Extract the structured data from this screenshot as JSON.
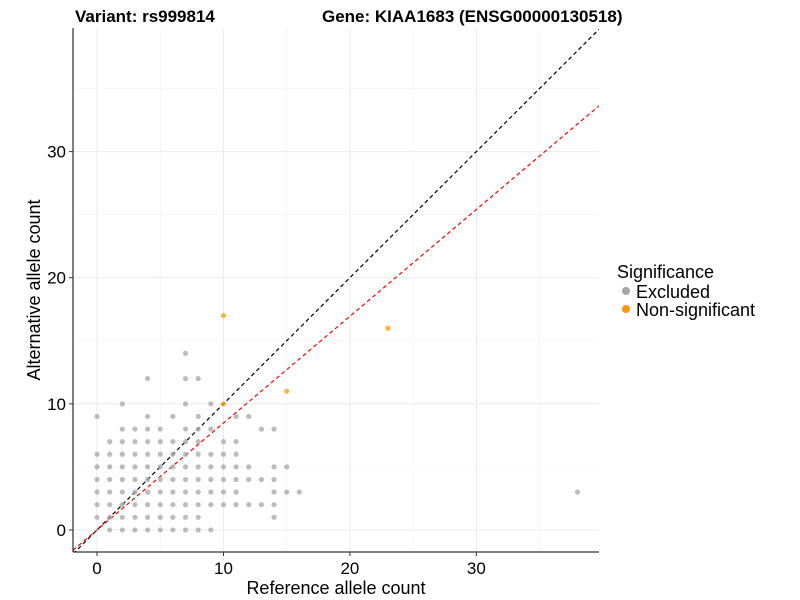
{
  "chart_data": {
    "type": "scatter",
    "title_left": "Variant: rs999814",
    "title_right": "Gene: KIAA1683 (ENSG00000130518)",
    "xlabel": "Reference allele count",
    "ylabel": "Alternative allele count",
    "xlim": [
      -1.9,
      39.7
    ],
    "ylim": [
      -1.75,
      39.8
    ],
    "xticks": [
      0,
      10,
      20,
      30
    ],
    "yticks": [
      0,
      10,
      20,
      30
    ],
    "xtick_labels": [
      "0",
      "10",
      "20",
      "30"
    ],
    "ytick_labels": [
      "0",
      "10",
      "20",
      "30"
    ],
    "grid": true,
    "legend": {
      "title": "Significance",
      "placement": "right",
      "entries": [
        "Excluded",
        "Non-significant"
      ]
    },
    "lines": [
      {
        "name": "identity",
        "slope": 1,
        "intercept": 0,
        "color": "#000000",
        "style": "dashed"
      },
      {
        "name": "fit",
        "slope": 0.847,
        "intercept": 0,
        "color": "#FF0000",
        "style": "dashed"
      }
    ],
    "series": [
      {
        "name": "Excluded",
        "color": "#A6A6A6",
        "rows": [
          {
            "y": 0,
            "x": [
              1,
              2,
              3,
              4,
              5,
              6,
              7,
              8,
              9
            ]
          },
          {
            "y": 1,
            "x": [
              0,
              1,
              2,
              3,
              4,
              5,
              6,
              7,
              8,
              14
            ]
          },
          {
            "y": 2,
            "x": [
              0,
              1,
              2,
              3,
              4,
              5,
              6,
              7,
              8,
              9,
              10,
              11,
              12,
              13,
              14
            ]
          },
          {
            "y": 3,
            "x": [
              0,
              1,
              2,
              3,
              4,
              5,
              6,
              7,
              8,
              9,
              10,
              11,
              14,
              15,
              16,
              38
            ]
          },
          {
            "y": 4,
            "x": [
              0,
              1,
              2,
              3,
              4,
              5,
              6,
              7,
              8,
              9,
              10,
              11,
              12,
              13,
              14
            ]
          },
          {
            "y": 5,
            "x": [
              0,
              1,
              2,
              3,
              4,
              5,
              6,
              7,
              8,
              9,
              10,
              11,
              12,
              14,
              15
            ]
          },
          {
            "y": 6,
            "x": [
              0,
              1,
              2,
              3,
              4,
              5,
              6,
              7,
              8,
              9,
              10,
              11
            ]
          },
          {
            "y": 7,
            "x": [
              1,
              2,
              3,
              4,
              5,
              6,
              7,
              8,
              10,
              11
            ]
          },
          {
            "y": 8,
            "x": [
              2,
              3,
              4,
              5,
              7,
              8,
              9,
              13,
              14
            ]
          },
          {
            "y": 9,
            "x": [
              0,
              4,
              6,
              8,
              11,
              12
            ]
          },
          {
            "y": 10,
            "x": [
              2,
              7,
              9
            ]
          },
          {
            "y": 12,
            "x": [
              4,
              7,
              8
            ]
          },
          {
            "y": 14,
            "x": [
              7
            ]
          }
        ]
      },
      {
        "name": "Non-significant",
        "color": "#FF9A00",
        "rows": [
          {
            "y": 10,
            "x": [
              10
            ]
          },
          {
            "y": 11,
            "x": [
              15
            ]
          },
          {
            "y": 16,
            "x": [
              23
            ]
          },
          {
            "y": 17,
            "x": [
              10
            ]
          }
        ]
      }
    ]
  }
}
